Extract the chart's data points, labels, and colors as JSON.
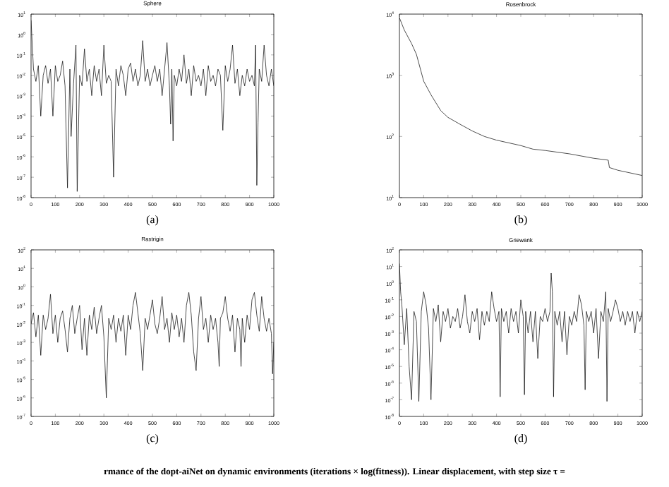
{
  "chart_data": [
    {
      "type": "line",
      "title": "Sphere",
      "annotations": [
        "(a)"
      ],
      "log": "y",
      "color": "#000000",
      "x": [
        0,
        10,
        20,
        30,
        40,
        50,
        60,
        70,
        80,
        90,
        100,
        110,
        120,
        130,
        140,
        150,
        160,
        165,
        175,
        185,
        190,
        200,
        210,
        220,
        230,
        240,
        250,
        260,
        270,
        280,
        290,
        300,
        310,
        320,
        330,
        340,
        350,
        360,
        370,
        380,
        390,
        400,
        410,
        420,
        430,
        440,
        450,
        460,
        470,
        480,
        490,
        500,
        510,
        520,
        530,
        540,
        550,
        560,
        570,
        575,
        580,
        585,
        590,
        600,
        610,
        620,
        630,
        640,
        650,
        660,
        670,
        680,
        690,
        700,
        710,
        720,
        730,
        740,
        750,
        760,
        770,
        780,
        790,
        800,
        810,
        820,
        830,
        840,
        850,
        860,
        870,
        880,
        890,
        900,
        910,
        920,
        925,
        930,
        935,
        940,
        950,
        960,
        970,
        980,
        990,
        1000
      ],
      "values": [
        5,
        0.02,
        0.005,
        0.03,
        0.0001,
        0.01,
        0.03,
        0.004,
        0.02,
        0.0001,
        0.03,
        0.005,
        0.01,
        0.05,
        0.003,
        3e-08,
        0.02,
        1e-05,
        0.004,
        0.3,
        2e-08,
        0.01,
        0.003,
        0.2,
        0.005,
        0.02,
        0.001,
        0.03,
        0.005,
        0.02,
        0.001,
        0.3,
        0.004,
        0.01,
        0.005,
        1e-07,
        0.02,
        0.003,
        0.03,
        0.01,
        0.001,
        0.02,
        0.04,
        0.005,
        0.02,
        0.003,
        0.01,
        0.5,
        0.005,
        0.02,
        0.003,
        0.01,
        0.03,
        0.005,
        0.02,
        0.001,
        0.02,
        0.4,
        0.003,
        4e-05,
        0.02,
        6e-06,
        0.01,
        0.003,
        0.02,
        0.005,
        0.1,
        0.004,
        0.02,
        0.001,
        0.03,
        0.005,
        0.01,
        0.003,
        0.02,
        0.001,
        0.03,
        0.005,
        0.01,
        0.003,
        0.02,
        0.01,
        2e-05,
        0.03,
        0.005,
        0.02,
        0.3,
        0.004,
        0.02,
        0.001,
        0.01,
        0.003,
        0.02,
        0.005,
        0.01,
        0.003,
        0.3,
        4e-08,
        5e-05,
        0.02,
        0.005,
        0.3,
        0.01,
        0.003,
        0.02,
        0.003
      ],
      "xlim": [
        0,
        1000
      ],
      "ylim": [
        1e-08,
        10
      ],
      "xticks": [
        0,
        100,
        200,
        300,
        400,
        500,
        600,
        700,
        800,
        900,
        1000
      ],
      "yticks": [
        {
          "value": 1e-08,
          "label": "10$^{-8}$"
        },
        {
          "value": 1e-07,
          "label": "10$^{-7}$"
        },
        {
          "value": 1e-06,
          "label": "10$^{-6}$"
        },
        {
          "value": 1e-05,
          "label": "10$^{-5}$"
        },
        {
          "value": 0.0001,
          "label": "10$^{-4}$"
        },
        {
          "value": 0.001,
          "label": "10$^{-3}$"
        },
        {
          "value": 0.01,
          "label": "10$^{-2}$"
        },
        {
          "value": 0.1,
          "label": "10$^{-1}$"
        },
        {
          "value": 1,
          "label": "10$^{0}$"
        },
        {
          "value": 10,
          "label": "10$^{1}$"
        }
      ]
    },
    {
      "type": "line",
      "title": "Rosenbrock",
      "annotations": [
        "(b)"
      ],
      "log": "y",
      "color": "#000000",
      "x": [
        0,
        20,
        50,
        70,
        100,
        130,
        170,
        200,
        250,
        300,
        350,
        400,
        500,
        550,
        600,
        700,
        800,
        860,
        865,
        900,
        1000
      ],
      "values": [
        8700,
        5500,
        3300,
        2200,
        800,
        480,
        265,
        205,
        158,
        123,
        100,
        87,
        71,
        62,
        59,
        52,
        44,
        41,
        31,
        28,
        23
      ],
      "xlim": [
        0,
        1000
      ],
      "ylim": [
        10,
        10000
      ],
      "xticks": [
        0,
        100,
        200,
        300,
        400,
        500,
        600,
        700,
        800,
        900,
        1000
      ],
      "yticks": [
        {
          "value": 10,
          "label": "10$^{1}$"
        },
        {
          "value": 100,
          "label": "10$^{2}$"
        },
        {
          "value": 1000,
          "label": "10$^{3}$"
        },
        {
          "value": 10000,
          "label": "10$^{4}$"
        }
      ]
    },
    {
      "type": "line",
      "title": "Rastrigin",
      "annotations": [
        "(c)"
      ],
      "log": "y",
      "color": "#000000",
      "x": [
        0,
        10,
        20,
        30,
        40,
        50,
        60,
        70,
        80,
        90,
        100,
        110,
        120,
        130,
        140,
        150,
        160,
        170,
        180,
        190,
        200,
        210,
        220,
        230,
        240,
        250,
        260,
        270,
        280,
        290,
        300,
        310,
        320,
        330,
        340,
        350,
        360,
        370,
        380,
        390,
        400,
        410,
        420,
        430,
        440,
        450,
        460,
        470,
        480,
        490,
        500,
        510,
        520,
        530,
        540,
        550,
        560,
        570,
        580,
        590,
        600,
        610,
        620,
        630,
        640,
        650,
        660,
        670,
        680,
        690,
        700,
        710,
        720,
        730,
        740,
        750,
        760,
        770,
        775,
        780,
        790,
        800,
        810,
        820,
        830,
        840,
        850,
        860,
        865,
        870,
        880,
        890,
        900,
        910,
        920,
        930,
        940,
        950,
        960,
        970,
        980,
        990,
        995,
        1000
      ],
      "values": [
        0.01,
        0.04,
        0.002,
        0.03,
        0.0002,
        0.03,
        0.005,
        0.02,
        0.4,
        0.003,
        0.03,
        0.001,
        0.02,
        0.05,
        0.005,
        0.0003,
        0.02,
        0.1,
        0.003,
        0.02,
        0.1,
        0.0004,
        0.02,
        0.0002,
        0.03,
        0.005,
        0.08,
        0.003,
        0.02,
        0.1,
        0.002,
        1e-06,
        0.02,
        0.005,
        0.03,
        0.001,
        0.02,
        0.004,
        0.03,
        0.0002,
        0.03,
        0.005,
        0.1,
        0.5,
        0.04,
        0.003,
        3e-05,
        0.02,
        0.005,
        0.03,
        0.2,
        0.01,
        0.003,
        0.02,
        0.3,
        0.005,
        0.02,
        0.001,
        0.04,
        0.005,
        0.03,
        0.002,
        0.02,
        0.001,
        0.1,
        0.5,
        0.03,
        0.0003,
        3e-05,
        0.02,
        0.3,
        0.005,
        0.02,
        0.001,
        0.03,
        0.005,
        0.02,
        0.001,
        5e-05,
        0.02,
        0.04,
        0.3,
        0.02,
        0.004,
        0.03,
        0.0003,
        0.02,
        0.005,
        5e-05,
        0.02,
        0.001,
        0.03,
        0.005,
        0.2,
        0.5,
        0.03,
        0.004,
        0.3,
        0.02,
        0.004,
        0.02,
        0.003,
        2e-05,
        0.001
      ],
      "xlim": [
        0,
        1000
      ],
      "ylim": [
        1e-07,
        100
      ],
      "xticks": [
        0,
        100,
        200,
        300,
        400,
        500,
        600,
        700,
        800,
        900,
        1000
      ],
      "yticks": [
        {
          "value": 1e-07,
          "label": "10$^{-7}$"
        },
        {
          "value": 1e-06,
          "label": "10$^{-6}$"
        },
        {
          "value": 1e-05,
          "label": "10$^{-5}$"
        },
        {
          "value": 0.0001,
          "label": "10$^{-4}$"
        },
        {
          "value": 0.001,
          "label": "10$^{-3}$"
        },
        {
          "value": 0.01,
          "label": "10$^{-2}$"
        },
        {
          "value": 0.1,
          "label": "10$^{-1}$"
        },
        {
          "value": 1,
          "label": "10$^{0}$"
        },
        {
          "value": 10,
          "label": "10$^{1}$"
        },
        {
          "value": 100,
          "label": "10$^{2}$"
        }
      ]
    },
    {
      "type": "line",
      "title": "Griewank",
      "annotations": [
        "(d)",
        "rmance of the dopt-aiNet on dynamic environments (iterations × log(fitness)). Linear displacement, with step size τ ="
      ],
      "log": "y",
      "color": "#000000",
      "x": [
        0,
        5,
        10,
        20,
        30,
        40,
        50,
        60,
        70,
        80,
        90,
        100,
        110,
        120,
        130,
        140,
        150,
        160,
        170,
        180,
        190,
        200,
        210,
        220,
        230,
        240,
        250,
        260,
        270,
        280,
        290,
        300,
        310,
        320,
        330,
        340,
        350,
        360,
        370,
        380,
        390,
        400,
        410,
        415,
        420,
        430,
        440,
        450,
        460,
        470,
        480,
        490,
        500,
        510,
        515,
        520,
        530,
        540,
        550,
        560,
        570,
        580,
        590,
        600,
        610,
        620,
        625,
        630,
        635,
        640,
        650,
        660,
        670,
        680,
        690,
        700,
        710,
        720,
        730,
        740,
        750,
        760,
        765,
        770,
        780,
        790,
        800,
        810,
        820,
        830,
        840,
        850,
        855,
        860,
        870,
        880,
        890,
        900,
        910,
        920,
        930,
        940,
        950,
        960,
        970,
        980,
        990,
        1000
      ],
      "values": [
        15,
        0.3,
        0.05,
        0.0002,
        0.03,
        1e-05,
        1e-07,
        0.02,
        0.005,
        8e-08,
        0.02,
        0.3,
        0.05,
        0.002,
        1e-07,
        0.03,
        0.005,
        0.05,
        0.0003,
        0.02,
        0.005,
        0.03,
        0.002,
        0.01,
        0.005,
        0.03,
        0.002,
        0.01,
        0.2,
        0.005,
        0.001,
        0.02,
        0.005,
        0.03,
        0.0004,
        0.02,
        0.003,
        0.02,
        0.005,
        0.3,
        0.03,
        0.005,
        0.02,
        1.5e-07,
        0.03,
        0.005,
        0.02,
        0.001,
        0.03,
        0.005,
        0.02,
        0.001,
        0.1,
        0.01,
        2e-07,
        0.02,
        0.001,
        0.02,
        0.0003,
        0.02,
        3e-05,
        0.01,
        0.005,
        0.03,
        0.005,
        0.02,
        4,
        0.3,
        1.5e-07,
        0.02,
        0.003,
        0.02,
        0.0003,
        0.02,
        5e-05,
        0.01,
        0.003,
        0.02,
        0.005,
        0.2,
        0.05,
        0.003,
        4e-07,
        0.02,
        0.005,
        0.02,
        0.001,
        0.03,
        3e-05,
        0.02,
        0.005,
        0.3,
        8e-08,
        0.03,
        0.005,
        0.02,
        0.1,
        0.03,
        0.005,
        0.02,
        0.003,
        0.02,
        0.005,
        0.02,
        0.001,
        0.02,
        0.005,
        0.02
      ],
      "xlim": [
        0,
        1000
      ],
      "ylim": [
        1e-08,
        100
      ],
      "xticks": [
        0,
        100,
        200,
        300,
        400,
        500,
        600,
        700,
        800,
        900,
        1000
      ],
      "yticks": [
        {
          "value": 1e-08,
          "label": "10$^{-8}$"
        },
        {
          "value": 1e-07,
          "label": "10$^{-7}$"
        },
        {
          "value": 1e-06,
          "label": "10$^{-6}$"
        },
        {
          "value": 1e-05,
          "label": "10$^{-5}$"
        },
        {
          "value": 0.0001,
          "label": "10$^{-4}$"
        },
        {
          "value": 0.001,
          "label": "10$^{-3}$"
        },
        {
          "value": 0.01,
          "label": "10$^{-2}$"
        },
        {
          "value": 0.1,
          "label": "10$^{-1}$"
        },
        {
          "value": 1,
          "label": "10$^{0}$"
        },
        {
          "value": 10,
          "label": "10$^{1}$"
        },
        {
          "value": 100,
          "label": "10$^{2}$"
        }
      ]
    }
  ]
}
